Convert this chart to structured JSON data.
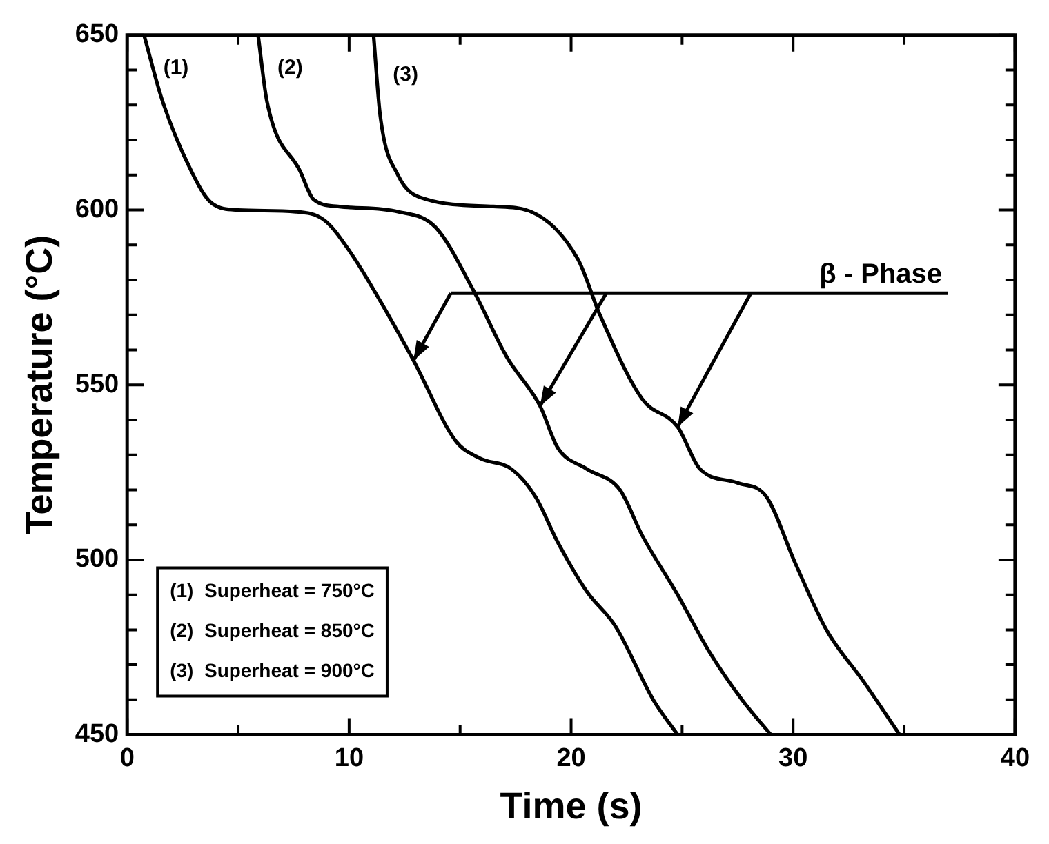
{
  "chart_data": {
    "type": "line",
    "xlabel": "Time (s)",
    "ylabel": "Temperature (°C)",
    "xlim": [
      0,
      40
    ],
    "ylim": [
      450,
      650
    ],
    "xticks": [
      0,
      {
        "value": 5,
        "label": null
      },
      10,
      {
        "value": 15,
        "label": null
      },
      20,
      {
        "value": 25,
        "label": null
      },
      30,
      {
        "value": 35,
        "label": null
      },
      40
    ],
    "yticks": [
      450,
      {
        "value": 460,
        "label": null
      },
      {
        "value": 470,
        "label": null
      },
      {
        "value": 480,
        "label": null
      },
      {
        "value": 490,
        "label": null
      },
      500,
      {
        "value": 510,
        "label": null
      },
      {
        "value": 520,
        "label": null
      },
      {
        "value": 530,
        "label": null
      },
      {
        "value": 540,
        "label": null
      },
      550,
      {
        "value": 560,
        "label": null
      },
      {
        "value": 570,
        "label": null
      },
      {
        "value": 580,
        "label": null
      },
      {
        "value": 590,
        "label": null
      },
      600,
      {
        "value": 610,
        "label": null
      },
      {
        "value": 620,
        "label": null
      },
      {
        "value": 630,
        "label": null
      },
      {
        "value": 640,
        "label": null
      },
      650
    ],
    "grid": false,
    "legend": false,
    "marker": "none",
    "line_style": "solid",
    "series": [
      {
        "name": "(1)",
        "color": "#000000",
        "x": [
          0.76,
          1.6,
          2.9,
          3.8,
          5.0,
          7.6,
          8.9,
          10.1,
          11.4,
          12.9,
          14.8,
          15.9,
          17.3,
          18.4,
          19.4,
          20.7,
          22.0,
          23.7,
          24.8
        ],
        "values": [
          650,
          631,
          611,
          602,
          600,
          599.5,
          597,
          587.5,
          574,
          557,
          534,
          529,
          526,
          518,
          505,
          491,
          481,
          460,
          450
        ]
      },
      {
        "name": "(2)",
        "color": "#000000",
        "x": [
          5.9,
          6.3,
          7.8,
          8.4,
          9.5,
          12.2,
          13.9,
          15.6,
          17.1,
          18.6,
          19.4,
          20.7,
          22.2,
          23.2,
          24.8,
          26.2,
          27.7,
          29.0
        ],
        "values": [
          650,
          631,
          611,
          603,
          601,
          599.5,
          595,
          577,
          558,
          544,
          532,
          526,
          520,
          507,
          490,
          474,
          460,
          450
        ]
      },
      {
        "name": "(3)",
        "color": "#000000",
        "x": [
          11.1,
          11.4,
          12.2,
          13.5,
          16.5,
          18.2,
          20.3,
          21.3,
          23.2,
          24.8,
          25.8,
          27.5,
          28.8,
          30.1,
          31.5,
          33.2,
          34.8
        ],
        "values": [
          650,
          627,
          610,
          603,
          601,
          599.5,
          586,
          570,
          546,
          538,
          526,
          522,
          518,
          499,
          480,
          465,
          450
        ]
      }
    ],
    "annotations": [
      "β - Phase",
      "(1)  Superheat = 750°C",
      "(2)  Superheat = 850°C",
      "(3)  Superheat = 900°C"
    ]
  }
}
